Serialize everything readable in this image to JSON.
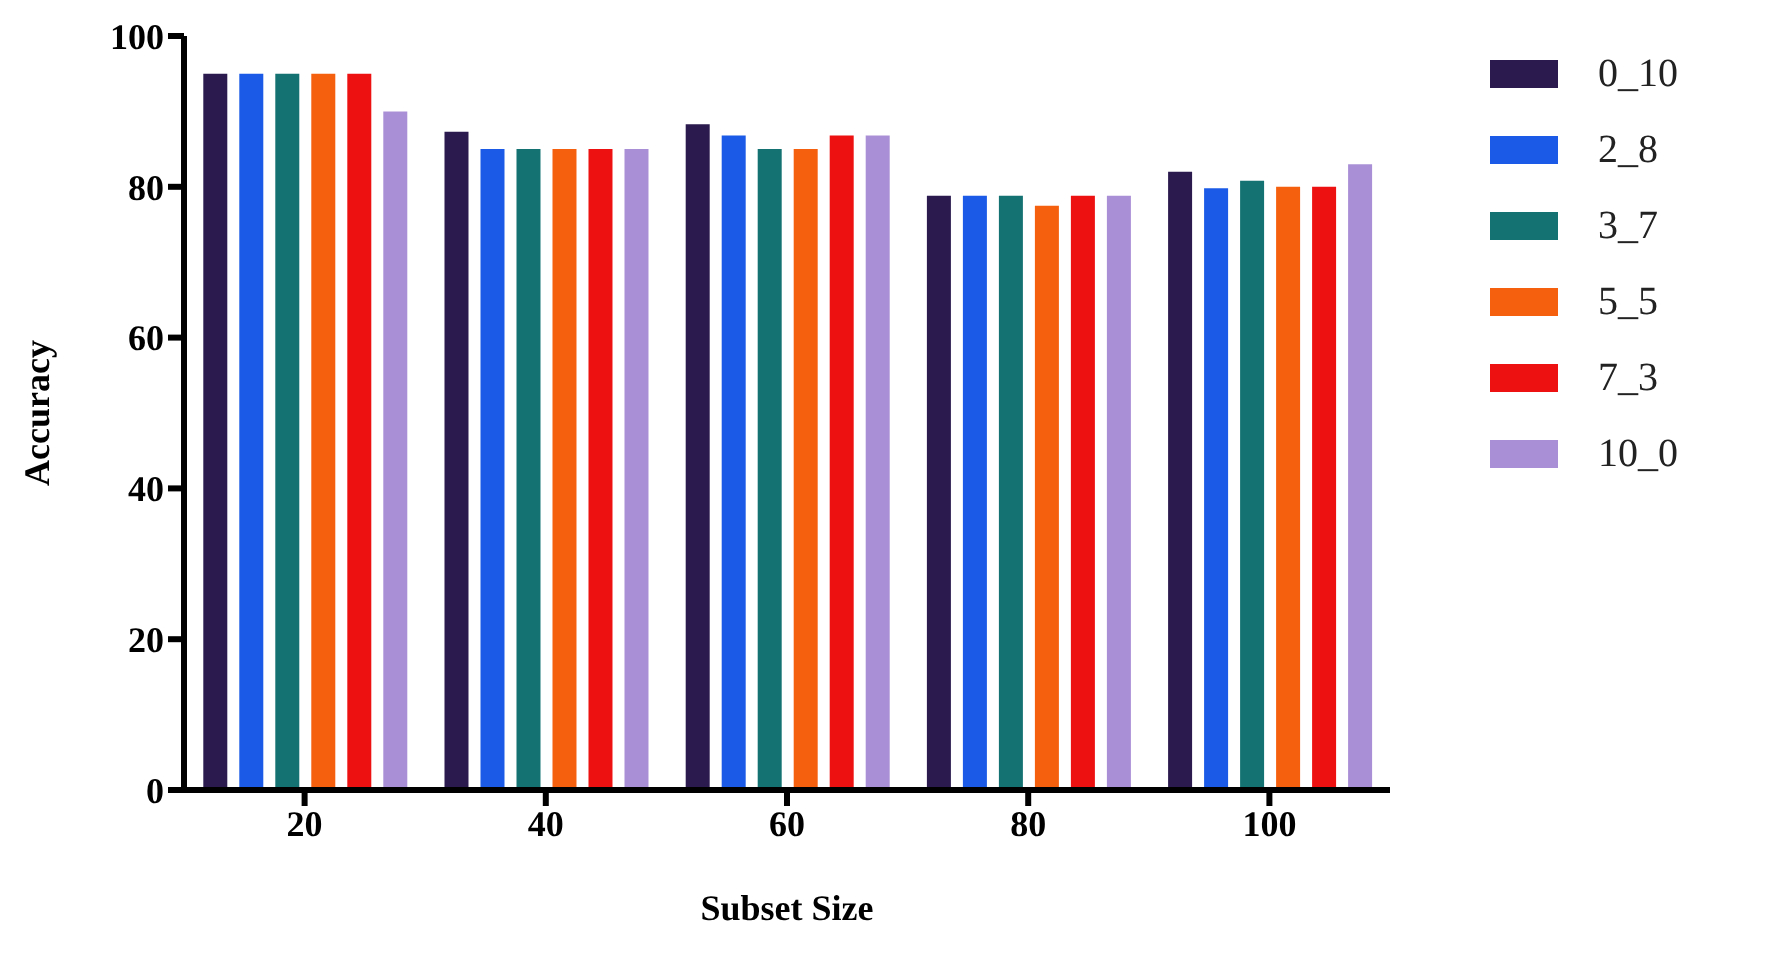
{
  "chart_data": {
    "type": "bar",
    "xlabel": "Subset Size",
    "ylabel": "Accuracy",
    "categories": [
      "20",
      "40",
      "60",
      "80",
      "100"
    ],
    "series": [
      {
        "name": "0_10",
        "color": "#2a1a4e",
        "values": [
          95,
          87.3,
          88.3,
          78.8,
          82
        ]
      },
      {
        "name": "2_8",
        "color": "#1a5ae6",
        "values": [
          95,
          85,
          86.8,
          78.8,
          79.8
        ]
      },
      {
        "name": "3_7",
        "color": "#147272",
        "values": [
          95,
          85,
          85,
          78.8,
          80.8
        ]
      },
      {
        "name": "5_5",
        "color": "#f5600f",
        "values": [
          95,
          85,
          85,
          77.5,
          80
        ]
      },
      {
        "name": "7_3",
        "color": "#ee1111",
        "values": [
          95,
          85,
          86.8,
          78.8,
          80
        ]
      },
      {
        "name": "10_0",
        "color": "#a98fd6",
        "values": [
          90,
          85,
          86.8,
          78.8,
          83
        ]
      }
    ],
    "ylim": [
      0,
      100
    ],
    "yticks": [
      0,
      20,
      40,
      60,
      80,
      100
    ],
    "grid": false,
    "legend": "top right"
  }
}
